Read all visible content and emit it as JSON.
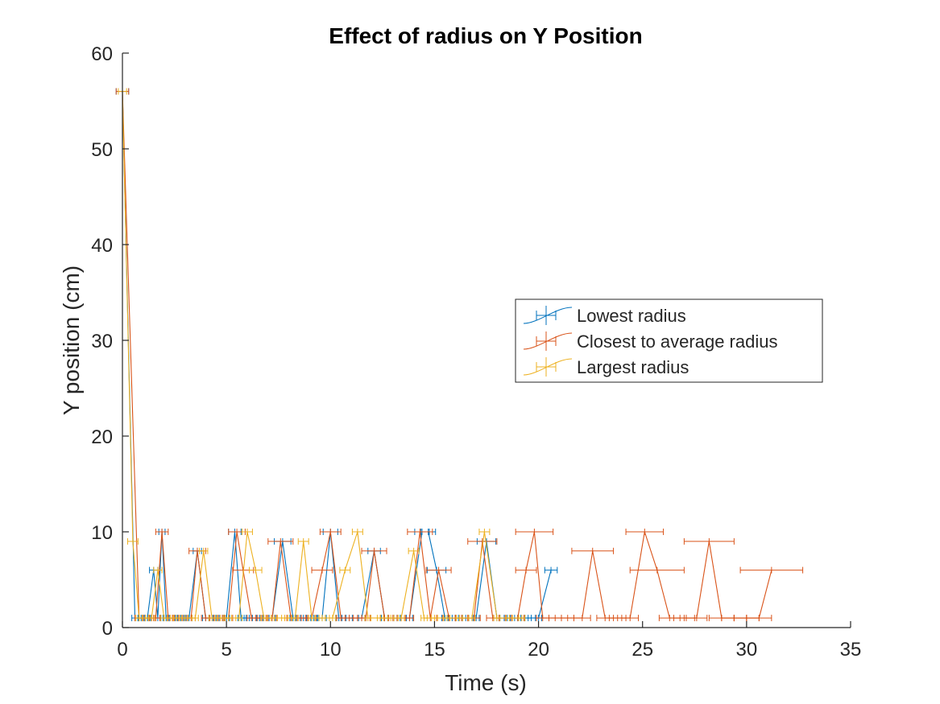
{
  "chart_data": {
    "type": "line",
    "title": "Effect of radius on  Y Position",
    "xlabel": "Time (s)",
    "ylabel": "Y position (cm)",
    "xlim": [
      0,
      35
    ],
    "ylim": [
      0,
      60
    ],
    "xticks": [
      "0",
      "5",
      "10",
      "15",
      "20",
      "25",
      "30",
      "35"
    ],
    "yticks": [
      "0",
      "10",
      "20",
      "30",
      "40",
      "50",
      "60"
    ],
    "grid": false,
    "legend_position": "center-right",
    "error_bars": "horizontal",
    "series": [
      {
        "name": "Lowest radius",
        "color": "#0072BD",
        "x": [
          0,
          0.6,
          0.9,
          1.2,
          1.5,
          1.7,
          1.9,
          2.1,
          2.4,
          2.8,
          3.2,
          3.6,
          4.0,
          4.5,
          5.0,
          5.4,
          5.7,
          6.1,
          6.6,
          7.2,
          7.7,
          8.2,
          8.7,
          9.2,
          9.6,
          10.0,
          10.4,
          10.9,
          11.5,
          12.1,
          12.6,
          13.2,
          13.8,
          14.4,
          14.7,
          15.1,
          15.5,
          16.0,
          16.5,
          17.0,
          17.5,
          18.0,
          18.5,
          19.0,
          19.5,
          20.0,
          20.6
        ],
        "y": [
          56,
          1,
          1,
          1,
          6,
          1,
          10,
          1,
          1,
          1,
          1,
          8,
          1,
          1,
          1,
          10,
          1,
          1,
          1,
          1,
          9,
          1,
          1,
          1,
          1,
          10,
          1,
          1,
          1,
          8,
          1,
          1,
          1,
          10,
          10,
          6,
          1,
          1,
          1,
          1,
          9,
          1,
          1,
          1,
          1,
          1,
          6
        ],
        "xerr": [
          0.3,
          0.15,
          0.15,
          0.15,
          0.2,
          0.15,
          0.15,
          0.15,
          0.15,
          0.15,
          0.15,
          0.2,
          0.15,
          0.15,
          0.15,
          0.3,
          0.15,
          0.15,
          0.15,
          0.15,
          0.4,
          0.15,
          0.15,
          0.15,
          0.2,
          0.35,
          0.15,
          0.15,
          0.15,
          0.3,
          0.15,
          0.15,
          0.15,
          0.35,
          0.35,
          0.45,
          0.15,
          0.15,
          0.15,
          0.15,
          0.45,
          0.15,
          0.15,
          0.15,
          0.15,
          0.15,
          0.3
        ]
      },
      {
        "name": "Closest to average radius",
        "color": "#D95319",
        "x": [
          0,
          0.8,
          1.3,
          1.6,
          1.9,
          2.2,
          2.7,
          3.3,
          3.6,
          4.0,
          4.6,
          5.1,
          5.5,
          5.8,
          6.2,
          6.7,
          7.2,
          7.6,
          8.1,
          8.6,
          9.1,
          9.6,
          10.0,
          10.5,
          11.1,
          11.7,
          12.1,
          12.6,
          13.2,
          13.8,
          14.3,
          14.8,
          15.2,
          15.7,
          16.3,
          16.9,
          17.3,
          17.8,
          18.4,
          19.0,
          19.4,
          19.8,
          20.2,
          20.8,
          21.4,
          22.1,
          22.6,
          23.2,
          23.8,
          24.4,
          25.1,
          25.7,
          26.3,
          27.0,
          27.6,
          28.2,
          28.8,
          29.4,
          30.0,
          30.6,
          31.2
        ],
        "y": [
          56,
          1,
          1,
          1,
          10,
          1,
          1,
          1,
          8,
          1,
          1,
          1,
          10,
          6,
          1,
          1,
          1,
          9,
          1,
          1,
          1,
          6,
          10,
          1,
          1,
          1,
          8,
          1,
          1,
          1,
          10,
          1,
          6,
          1,
          1,
          1,
          9,
          1,
          1,
          1,
          6,
          10,
          1,
          1,
          1,
          1,
          8,
          1,
          1,
          1,
          10,
          6,
          1,
          1,
          1,
          9,
          1,
          1,
          1,
          1,
          6
        ],
        "xerr": [
          0.3,
          0.2,
          0.2,
          0.2,
          0.3,
          0.2,
          0.2,
          0.2,
          0.4,
          0.2,
          0.2,
          0.2,
          0.4,
          0.5,
          0.2,
          0.2,
          0.2,
          0.6,
          0.2,
          0.2,
          0.2,
          0.5,
          0.5,
          0.2,
          0.2,
          0.2,
          0.6,
          0.2,
          0.2,
          0.2,
          0.6,
          0.3,
          0.6,
          0.3,
          0.3,
          0.3,
          0.7,
          0.3,
          0.3,
          0.3,
          0.5,
          0.9,
          0.3,
          0.3,
          0.3,
          0.4,
          1.0,
          0.4,
          0.4,
          0.4,
          0.9,
          1.3,
          0.5,
          0.5,
          0.5,
          1.2,
          0.6,
          0.6,
          0.6,
          0.6,
          1.5
        ]
      },
      {
        "name": "Largest radius",
        "color": "#EDB120",
        "x": [
          0,
          0.5,
          0.8,
          1.1,
          1.4,
          1.7,
          2.0,
          2.3,
          2.6,
          3.0,
          3.5,
          3.9,
          4.3,
          4.7,
          5.1,
          5.6,
          6.0,
          6.4,
          6.8,
          7.3,
          7.8,
          8.3,
          8.7,
          9.1,
          9.6,
          10.1,
          10.7,
          11.3,
          11.8,
          12.4,
          12.9,
          13.4,
          14.0,
          14.5,
          15.0,
          15.6,
          16.2,
          16.8,
          17.4,
          18.0,
          18.6,
          19.2
        ],
        "y": [
          56,
          9,
          1,
          1,
          1,
          6,
          1,
          1,
          1,
          1,
          1,
          8,
          1,
          1,
          1,
          1,
          10,
          6,
          1,
          1,
          1,
          1,
          9,
          1,
          1,
          1,
          6,
          10,
          1,
          1,
          1,
          1,
          8,
          1,
          1,
          1,
          1,
          1,
          10,
          1,
          1,
          1
        ],
        "xerr": [
          0.2,
          0.25,
          0.15,
          0.15,
          0.15,
          0.2,
          0.15,
          0.15,
          0.15,
          0.15,
          0.15,
          0.2,
          0.15,
          0.15,
          0.15,
          0.15,
          0.25,
          0.3,
          0.15,
          0.15,
          0.15,
          0.15,
          0.25,
          0.15,
          0.15,
          0.15,
          0.25,
          0.25,
          0.15,
          0.15,
          0.15,
          0.15,
          0.25,
          0.15,
          0.15,
          0.15,
          0.15,
          0.15,
          0.25,
          0.15,
          0.15,
          0.15
        ]
      }
    ]
  }
}
